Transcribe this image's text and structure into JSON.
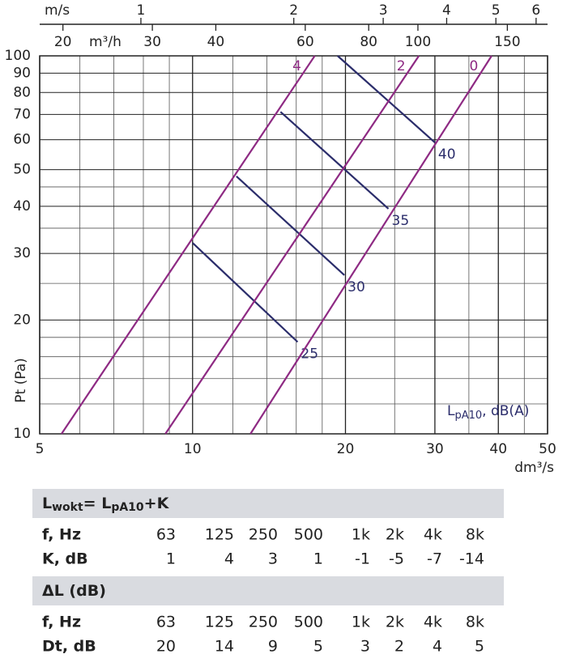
{
  "chart_data": {
    "type": "line",
    "xlabel": "dm³/s",
    "ylabel": "Pt (Pa)",
    "xscale": "log",
    "yscale": "log",
    "xlim": [
      5,
      50
    ],
    "ylim": [
      10,
      100
    ],
    "xticks": [
      5,
      10,
      20,
      30,
      40,
      50
    ],
    "yticks": [
      10,
      20,
      30,
      40,
      50,
      60,
      70,
      80,
      90,
      100
    ],
    "xgrid": [
      6,
      7,
      8,
      9,
      12,
      14,
      16,
      18,
      25,
      35,
      45
    ],
    "ygrid": [
      12,
      14,
      16,
      18,
      25,
      35,
      45
    ],
    "top_axes": [
      {
        "label": "m/s",
        "xlim": [
          0.632,
          6.32
        ],
        "xticks": [
          1,
          2,
          3,
          4,
          5,
          6
        ]
      },
      {
        "label": "m³/h",
        "xlim": [
          18,
          180
        ],
        "xticks": [
          20,
          30,
          40,
          60,
          80,
          100,
          150
        ]
      }
    ],
    "series": [
      {
        "name": "4",
        "color": "#8e2a83",
        "x": [
          5.52,
          17.4
        ],
        "y": [
          10,
          100
        ]
      },
      {
        "name": "2",
        "color": "#8e2a83",
        "x": [
          8.84,
          27.9
        ],
        "y": [
          10,
          100
        ]
      },
      {
        "name": "0",
        "color": "#8e2a83",
        "x": [
          13.0,
          38.8
        ],
        "y": [
          10,
          100
        ]
      }
    ],
    "noise_lines": {
      "color": "#2b2d6b",
      "series": [
        {
          "name": "25",
          "x": [
            10,
            16.1
          ],
          "y": [
            32.0,
            17.5
          ]
        },
        {
          "name": "30",
          "x": [
            12.2,
            19.9
          ],
          "y": [
            48.0,
            26.3
          ]
        },
        {
          "name": "35",
          "x": [
            14.9,
            24.3
          ],
          "y": [
            71.1,
            39.4
          ]
        },
        {
          "name": "40",
          "x": [
            19.3,
            30
          ],
          "y": [
            100,
            59.0
          ]
        }
      ]
    },
    "legend_title_parts": [
      "L",
      "pA10",
      ", dB(A)"
    ]
  },
  "table": {
    "sections": [
      {
        "title_parts": [
          "L",
          "wokt",
          "= L",
          "pA10",
          "+K"
        ],
        "rows": [
          [
            "f, Hz",
            "63",
            "125",
            "250",
            "500",
            "1k",
            "2k",
            "4k",
            "8k"
          ],
          [
            "K, dB",
            1,
            4,
            3,
            1,
            -1,
            -5,
            -7,
            -14
          ]
        ]
      },
      {
        "title_parts": [
          "ΔL (dB)"
        ],
        "rows": [
          [
            "f, Hz",
            "63",
            "125",
            "250",
            "500",
            "1k",
            "2k",
            "4k",
            "8k"
          ],
          [
            "Dt, dB",
            20,
            14,
            9,
            5,
            3,
            2,
            4,
            5
          ]
        ]
      }
    ]
  }
}
